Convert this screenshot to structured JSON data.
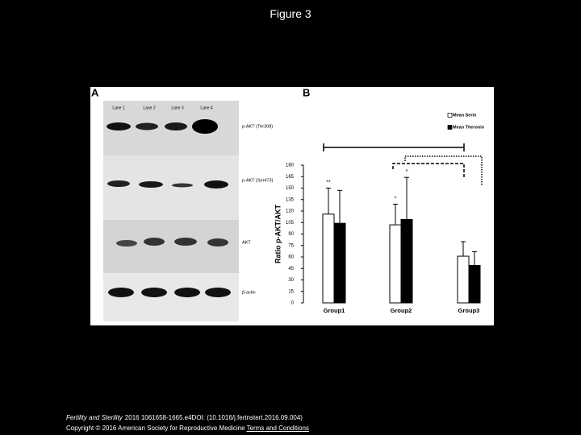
{
  "title": "Figure 3",
  "panel_a": {
    "label": "A",
    "lanes": [
      "Lane 1",
      "Lane 2",
      "Lane 3",
      "Lane 4"
    ],
    "bands": [
      "p-AKT (Thr308)",
      "p-AKT (Ser473)",
      "AKT",
      "β-actin"
    ]
  },
  "chart_data": {
    "type": "bar",
    "panel_label": "B",
    "y_label": "Ratio p-AKT/AKT",
    "categories": [
      "Group1",
      "Group2",
      "Group3"
    ],
    "series": [
      {
        "name": "Mean Serin",
        "color": "#ffffff",
        "values": [
          116,
          102,
          61
        ],
        "errors": [
          34,
          27,
          19
        ]
      },
      {
        "name": "Mean Theronin",
        "color": "#000000",
        "values": [
          104,
          109,
          49
        ],
        "errors": [
          43,
          55,
          18
        ]
      }
    ],
    "annotations": [
      "**",
      "*",
      "*"
    ],
    "ylim": [
      0,
      180
    ],
    "yticks": [
      0,
      15,
      30,
      45,
      60,
      75,
      90,
      105,
      120,
      135,
      150,
      165,
      180
    ],
    "legend": "upper right",
    "grid": false
  },
  "footer": {
    "journal": "Fertility and Sterility",
    "citation": "2016 1061658-1665.e4DOI: (10.1016/j.fertnstert.2016.09.004)",
    "copyright": "Copyright © 2016 American Society for Reproductive Medicine",
    "link": "Terms and Conditions"
  }
}
